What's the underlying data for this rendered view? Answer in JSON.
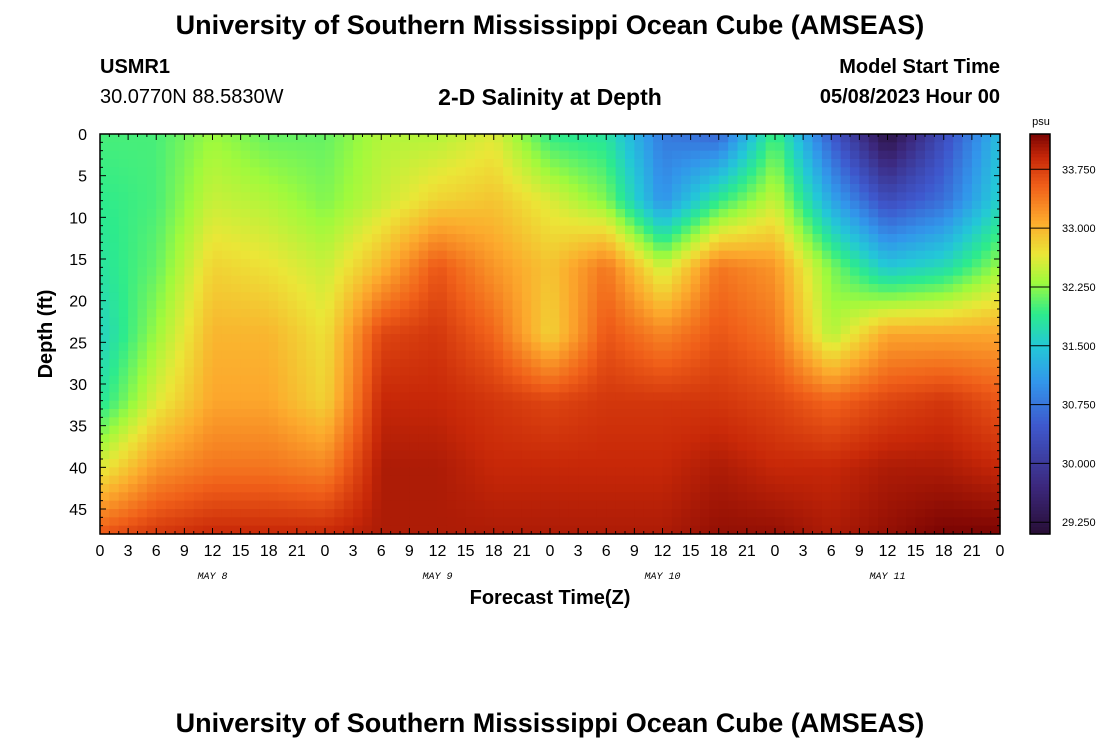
{
  "header": {
    "title": "University of Southern Mississippi Ocean Cube (AMSEAS)",
    "station": "USMR1",
    "coords": "30.0770N  88.5830W",
    "plot_title": "2-D Salinity at Depth",
    "model_label": "Model Start Time",
    "model_time": "05/08/2023 Hour 00"
  },
  "footer": {
    "title": "University of Southern Mississippi Ocean Cube (AMSEAS)"
  },
  "chart_data": {
    "type": "heatmap",
    "title": "2-D Salinity at Depth",
    "xlabel": "Forecast Time(Z)",
    "ylabel": "Depth (ft)",
    "x_ticks": [
      "0",
      "3",
      "6",
      "9",
      "12",
      "15",
      "18",
      "21",
      "0",
      "3",
      "6",
      "9",
      "12",
      "15",
      "18",
      "21",
      "0",
      "3",
      "6",
      "9",
      "12",
      "15",
      "18",
      "21",
      "0",
      "3",
      "6",
      "9",
      "12",
      "15",
      "18",
      "21",
      "0"
    ],
    "x_range_hours": [
      0,
      96
    ],
    "day_labels": [
      {
        "label": "MAY 8",
        "hour": 12
      },
      {
        "label": "MAY 9",
        "hour": 36
      },
      {
        "label": "MAY 10",
        "hour": 60
      },
      {
        "label": "MAY 11",
        "hour": 84
      }
    ],
    "y_ticks": [
      "0",
      "5",
      "10",
      "15",
      "20",
      "25",
      "30",
      "35",
      "40",
      "45"
    ],
    "y_range_ft": [
      0,
      48
    ],
    "colorbar": {
      "unit": "psu",
      "range": [
        29.1,
        34.2
      ],
      "tick_labels": [
        "33.750",
        "33.000",
        "32.250",
        "31.500",
        "30.750",
        "30.000",
        "29.250"
      ],
      "tick_values": [
        33.75,
        33.0,
        32.25,
        31.5,
        30.75,
        30.0,
        29.25
      ]
    },
    "grid_hours": [
      0,
      6,
      12,
      18,
      24,
      30,
      36,
      42,
      48,
      54,
      60,
      66,
      72,
      78,
      84,
      90,
      96
    ],
    "grid_depths_ft": [
      0,
      8,
      16,
      24,
      32,
      40,
      48
    ],
    "values": [
      [
        32.0,
        32.0,
        32.3,
        32.1,
        32.1,
        32.4,
        32.4,
        32.6,
        31.9,
        31.8,
        30.8,
        30.6,
        32.0,
        30.5,
        29.2,
        30.3,
        31.4
      ],
      [
        31.9,
        32.0,
        32.5,
        32.4,
        32.2,
        32.5,
        32.8,
        32.9,
        32.6,
        32.2,
        31.0,
        31.9,
        32.5,
        31.2,
        30.3,
        30.7,
        31.6
      ],
      [
        31.8,
        32.1,
        32.8,
        32.7,
        32.5,
        33.0,
        33.6,
        33.2,
        32.9,
        33.4,
        32.5,
        33.4,
        33.2,
        32.2,
        31.5,
        31.7,
        32.3
      ],
      [
        31.6,
        32.3,
        33.0,
        33.0,
        32.7,
        33.7,
        33.8,
        33.5,
        32.8,
        33.6,
        33.3,
        33.6,
        33.4,
        32.4,
        33.1,
        33.1,
        33.1
      ],
      [
        31.8,
        32.6,
        33.1,
        33.1,
        32.8,
        33.9,
        33.9,
        33.8,
        33.7,
        33.8,
        33.8,
        33.8,
        33.7,
        33.5,
        33.7,
        33.8,
        33.6
      ],
      [
        32.6,
        33.2,
        33.4,
        33.4,
        33.3,
        34.0,
        34.0,
        33.9,
        33.9,
        33.9,
        33.9,
        34.0,
        33.9,
        33.9,
        34.0,
        34.0,
        33.9
      ],
      [
        33.6,
        33.8,
        33.9,
        33.9,
        33.9,
        34.0,
        34.0,
        34.0,
        34.0,
        34.0,
        34.0,
        34.1,
        34.1,
        34.0,
        34.1,
        34.2,
        34.2
      ]
    ]
  }
}
